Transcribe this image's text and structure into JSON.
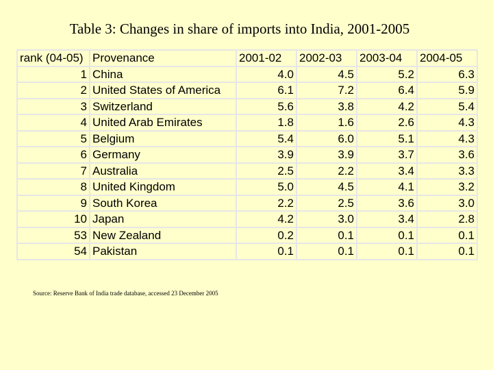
{
  "title": "Table 3: Changes in share of imports into India, 2001-2005",
  "table": {
    "headers": [
      "rank (04-05)",
      "Provenance",
      "2001-02",
      "2002-03",
      "2003-04",
      "2004-05"
    ],
    "rows": [
      {
        "rank": "1",
        "provenance": "China",
        "values": [
          "4.0",
          "4.5",
          "5.2",
          "6.3"
        ]
      },
      {
        "rank": "2",
        "provenance": "United States of America",
        "values": [
          "6.1",
          "7.2",
          "6.4",
          "5.9"
        ]
      },
      {
        "rank": "3",
        "provenance": "Switzerland",
        "values": [
          "5.6",
          "3.8",
          "4.2",
          "5.4"
        ]
      },
      {
        "rank": "4",
        "provenance": "United Arab Emirates",
        "values": [
          "1.8",
          "1.6",
          "2.6",
          "4.3"
        ]
      },
      {
        "rank": "5",
        "provenance": "Belgium",
        "values": [
          "5.4",
          "6.0",
          "5.1",
          "4.3"
        ]
      },
      {
        "rank": "6",
        "provenance": "Germany",
        "values": [
          "3.9",
          "3.9",
          "3.7",
          "3.6"
        ]
      },
      {
        "rank": "7",
        "provenance": "Australia",
        "values": [
          "2.5",
          "2.2",
          "3.4",
          "3.3"
        ]
      },
      {
        "rank": "8",
        "provenance": "United Kingdom",
        "values": [
          "5.0",
          "4.5",
          "4.1",
          "3.2"
        ]
      },
      {
        "rank": "9",
        "provenance": "South Korea",
        "values": [
          "2.2",
          "2.5",
          "3.6",
          "3.0"
        ]
      },
      {
        "rank": "10",
        "provenance": "Japan",
        "values": [
          "4.2",
          "3.0",
          "3.4",
          "2.8"
        ]
      },
      {
        "rank": "53",
        "provenance": "New Zealand",
        "values": [
          "0.2",
          "0.1",
          "0.1",
          "0.1"
        ]
      },
      {
        "rank": "54",
        "provenance": "Pakistan",
        "values": [
          "0.1",
          "0.1",
          "0.1",
          "0.1"
        ]
      }
    ]
  },
  "source": "Source: Reserve Bank of India trade database, accessed 23 December 2005",
  "colors": {
    "background": "#ffffcc",
    "grid": "#e6e6e6",
    "text": "#000000"
  }
}
